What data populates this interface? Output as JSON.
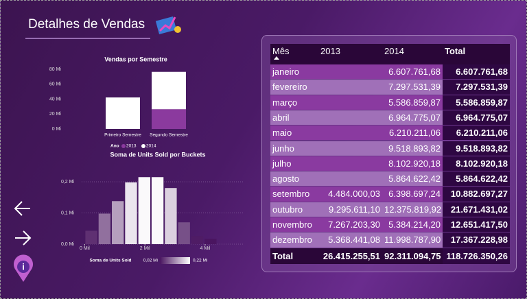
{
  "header": {
    "title": "Detalhes de Vendas"
  },
  "chart_data": [
    {
      "type": "stacked-bar",
      "title": "Vendas por Semestre",
      "categories": [
        "Primeiro Semestre",
        "Segundo Semestre"
      ],
      "series": [
        {
          "name": "2013",
          "color": "#8b3a9e",
          "values": [
            null,
            26.42
          ]
        },
        {
          "name": "2014",
          "color": "#ffffff",
          "values": [
            42.19,
            50.13
          ]
        }
      ],
      "legend_title": "Ano",
      "ylim": [
        0,
        80
      ],
      "yticks": [
        {
          "value": 0,
          "label": "0 Mi"
        },
        {
          "value": 20,
          "label": "20 Mi"
        },
        {
          "value": 40,
          "label": "40 Mi"
        },
        {
          "value": 60,
          "label": "60 Mi"
        },
        {
          "value": 80,
          "label": "80 Mi"
        }
      ]
    },
    {
      "type": "histogram",
      "title": "Soma de Units Sold por Buckets",
      "bins": [
        0,
        440,
        880,
        1320,
        1760,
        2200,
        2640,
        3080,
        3520,
        3960,
        4400
      ],
      "values": [
        0.043,
        0.098,
        0.138,
        0.198,
        0.215,
        0.215,
        0.18,
        0.07,
        0.026,
        0.017
      ],
      "xlim": [
        -100,
        5300
      ],
      "xticks": [
        {
          "value": 0,
          "label": "0 Mil"
        },
        {
          "value": 2000,
          "label": "2 Mil"
        },
        {
          "value": 4000,
          "label": "4 Mil"
        }
      ],
      "ylim": [
        0,
        0.22
      ],
      "yticks": [
        {
          "value": 0,
          "label": "0,0 Mi"
        },
        {
          "value": 0.1,
          "label": "0,1 Mi"
        },
        {
          "value": 0.2,
          "label": "0,2 Mi"
        }
      ],
      "grid": true,
      "color_scale": {
        "title": "Soma de Units Sold",
        "colors": [
          "#4a1560",
          "#ffffff"
        ],
        "min": {
          "value": 0.02,
          "label": "0,02 Mi"
        },
        "max": {
          "value": 0.22,
          "label": "0,22 Mi"
        }
      }
    }
  ],
  "table": {
    "columns": [
      "Mês",
      "2013",
      "2014",
      "Total"
    ],
    "rows": [
      [
        "janeiro",
        "",
        "6.607.761,68",
        "6.607.761,68"
      ],
      [
        "fevereiro",
        "",
        "7.297.531,39",
        "7.297.531,39"
      ],
      [
        "março",
        "",
        "5.586.859,87",
        "5.586.859,87"
      ],
      [
        "abril",
        "",
        "6.964.775,07",
        "6.964.775,07"
      ],
      [
        "maio",
        "",
        "6.210.211,06",
        "6.210.211,06"
      ],
      [
        "junho",
        "",
        "9.518.893,82",
        "9.518.893,82"
      ],
      [
        "julho",
        "",
        "8.102.920,18",
        "8.102.920,18"
      ],
      [
        "agosto",
        "",
        "5.864.622,42",
        "5.864.622,42"
      ],
      [
        "setembro",
        "4.484.000,03",
        "6.398.697,24",
        "10.882.697,27"
      ],
      [
        "outubro",
        "9.295.611,10",
        "12.375.819,92",
        "21.671.431,02"
      ],
      [
        "novembro",
        "7.267.203,30",
        "5.384.214,20",
        "12.651.417,50"
      ],
      [
        "dezembro",
        "5.368.441,08",
        "11.998.787,90",
        "17.367.228,98"
      ]
    ],
    "total": [
      "Total",
      "26.415.255,51",
      "92.311.094,75",
      "118.726.350,26"
    ]
  }
}
